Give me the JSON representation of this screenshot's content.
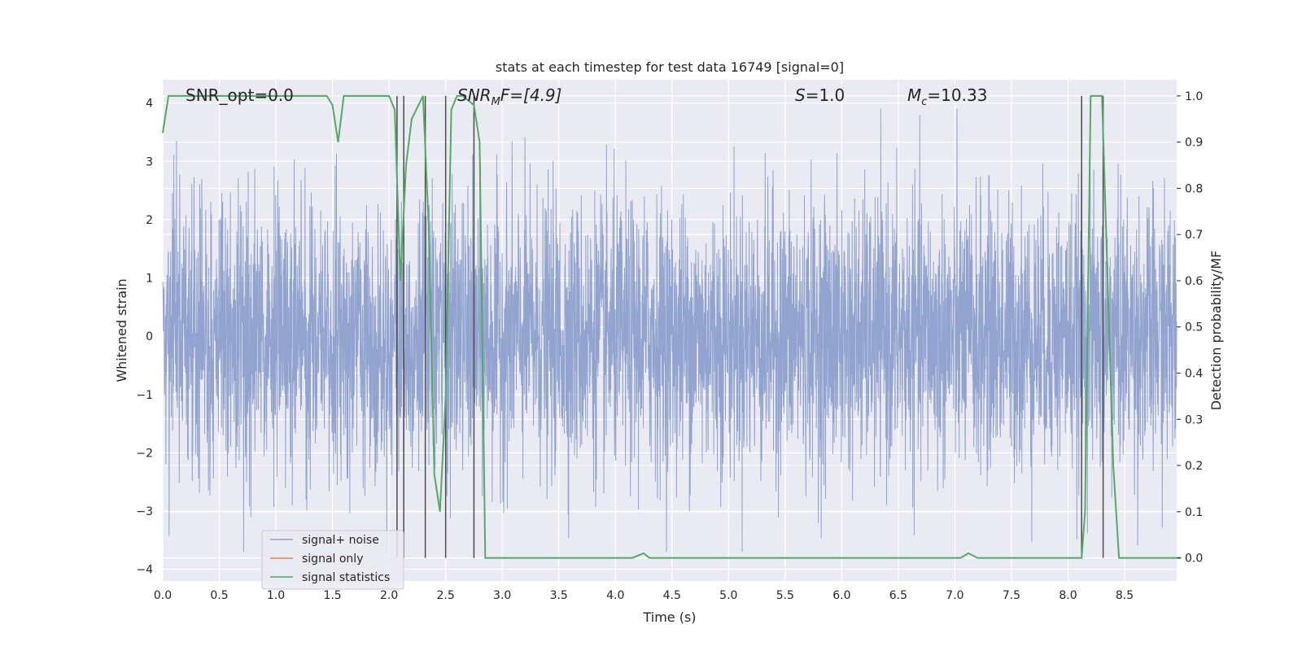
{
  "chart_data": {
    "type": "line",
    "title": "stats at each timestep for test data 16749 [signal=0]",
    "xlabel": "Time (s)",
    "ylabel": "Whitened strain",
    "ylabel_right": "Detection probability/MF",
    "xlim": [
      0.0,
      8.96
    ],
    "ylim": [
      -4.2,
      4.4
    ],
    "ylim_right": [
      -0.05,
      1.035
    ],
    "x_ticks": [
      "0.0",
      "0.5",
      "1.0",
      "1.5",
      "2.0",
      "2.5",
      "3.0",
      "3.5",
      "4.0",
      "4.5",
      "5.0",
      "5.5",
      "6.0",
      "6.5",
      "7.0",
      "7.5",
      "8.0",
      "8.5"
    ],
    "y_ticks": [
      "−4",
      "−3",
      "−2",
      "−1",
      "0",
      "1",
      "2",
      "3",
      "4"
    ],
    "y_ticks_right": [
      "0.0",
      "0.1",
      "0.2",
      "0.3",
      "0.4",
      "0.5",
      "0.6",
      "0.7",
      "0.8",
      "0.9",
      "1.0"
    ],
    "grid": true,
    "legend_placement": "lower-left",
    "annotations": {
      "snr_opt": "SNR_opt=0.0",
      "snr_mf_main": "SNR",
      "snr_mf_sub": "M",
      "snr_mf_rest": "F=[4.9]",
      "s_var": "S",
      "s_rest": "=1.0",
      "mc_var": "M",
      "mc_sub": "c",
      "mc_rest": "=10.33"
    },
    "series": [
      {
        "name": "signal+ noise",
        "color": "#8c9fcb",
        "description": "whitened strain noise, amplitude roughly ±2.5 with peaks to ±4",
        "amplitude_envelope": [
          -3.7,
          3.9
        ]
      },
      {
        "name": "signal only",
        "color": "#dd8452",
        "values": []
      },
      {
        "name": "signal statistics",
        "color": "#55a868",
        "axis": "right",
        "x": [
          0.0,
          0.05,
          0.1,
          0.5,
          1.0,
          1.45,
          1.5,
          1.55,
          1.6,
          2.0,
          2.05,
          2.1,
          2.15,
          2.2,
          2.3,
          2.35,
          2.4,
          2.45,
          2.5,
          2.55,
          2.6,
          2.65,
          2.7,
          2.75,
          2.8,
          2.85,
          2.9,
          3.0,
          3.5,
          4.0,
          4.15,
          4.25,
          4.3,
          4.5,
          5.0,
          5.5,
          6.0,
          6.5,
          7.0,
          7.05,
          7.12,
          7.2,
          7.5,
          8.0,
          8.12,
          8.15,
          8.2,
          8.3,
          8.4,
          8.45,
          8.5,
          9.0
        ],
        "values": [
          0.92,
          1.0,
          1.0,
          1.0,
          1.0,
          1.0,
          0.98,
          0.9,
          1.0,
          1.0,
          0.97,
          0.6,
          0.85,
          0.95,
          1.0,
          0.72,
          0.18,
          0.1,
          0.35,
          0.97,
          1.0,
          1.0,
          0.99,
          0.98,
          0.9,
          0.0,
          0.0,
          0.0,
          0.0,
          0.0,
          0.0,
          0.01,
          0.0,
          0.0,
          0.0,
          0.0,
          0.0,
          0.0,
          0.0,
          0.0,
          0.01,
          0.0,
          0.0,
          0.0,
          0.0,
          0.1,
          1.0,
          1.0,
          0.2,
          0.0,
          0.0,
          0.0
        ]
      }
    ],
    "vertical_lines_x": [
      2.07,
      2.13,
      2.32,
      2.5,
      2.75,
      8.12,
      8.31
    ],
    "vertical_lines_color": "#4d4d4d"
  }
}
